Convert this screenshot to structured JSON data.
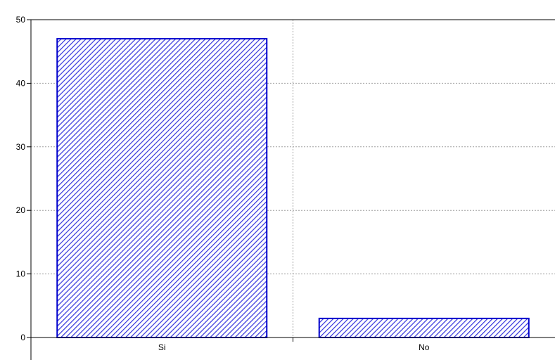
{
  "chart_data": {
    "type": "bar",
    "title": "",
    "xlabel": "",
    "ylabel": "",
    "categories": [
      "Si",
      "No"
    ],
    "values": [
      47,
      3
    ],
    "ylim": [
      0,
      50
    ],
    "yticks": [
      0,
      10,
      20,
      30,
      40,
      50
    ],
    "ytick_labels": [
      "0",
      "10",
      "20",
      "30",
      "40",
      "50"
    ],
    "grid": true,
    "legend": "none",
    "bar_fill": "hatched diagonal",
    "colors": {
      "bar_border": "#0000cc",
      "hatch_line": "#3333dd",
      "hatch_bg": "#ffffff",
      "grid": "#a0a0a0",
      "axis": "#000000"
    }
  }
}
